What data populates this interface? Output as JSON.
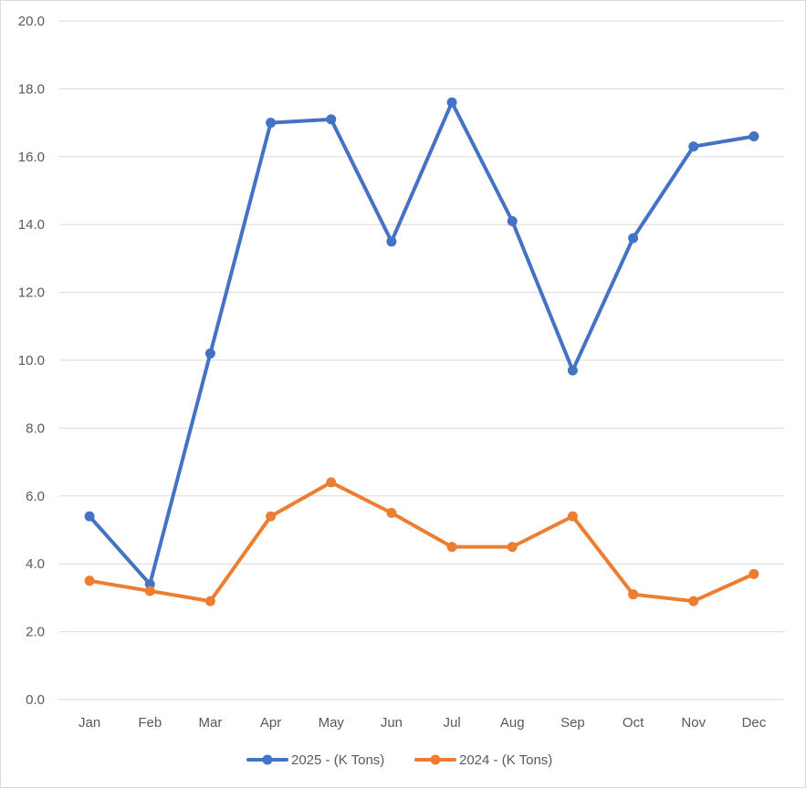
{
  "chart_data": {
    "type": "line",
    "title": "",
    "xlabel": "",
    "ylabel": "",
    "categories": [
      "Jan",
      "Feb",
      "Mar",
      "Apr",
      "May",
      "Jun",
      "Jul",
      "Aug",
      "Sep",
      "Oct",
      "Nov",
      "Dec"
    ],
    "ylim": [
      0,
      20
    ],
    "y_ticks": [
      "0.0",
      "2.0",
      "4.0",
      "6.0",
      "8.0",
      "10.0",
      "12.0",
      "14.0",
      "16.0",
      "18.0",
      "20.0"
    ],
    "y_tick_values": [
      0,
      2,
      4,
      6,
      8,
      10,
      12,
      14,
      16,
      18,
      20
    ],
    "grid": true,
    "legend_position": "bottom",
    "series": [
      {
        "name": "2025 - (K Tons)",
        "color": "#4472C4",
        "values": [
          5.4,
          3.4,
          10.2,
          17.0,
          17.1,
          13.5,
          17.6,
          14.1,
          9.7,
          13.6,
          16.3,
          16.6
        ]
      },
      {
        "name": "2024 - (K Tons)",
        "color": "#ED7D31",
        "values": [
          3.5,
          3.2,
          2.9,
          5.4,
          6.4,
          5.5,
          4.5,
          4.5,
          5.4,
          3.1,
          2.9,
          3.7
        ]
      }
    ]
  }
}
